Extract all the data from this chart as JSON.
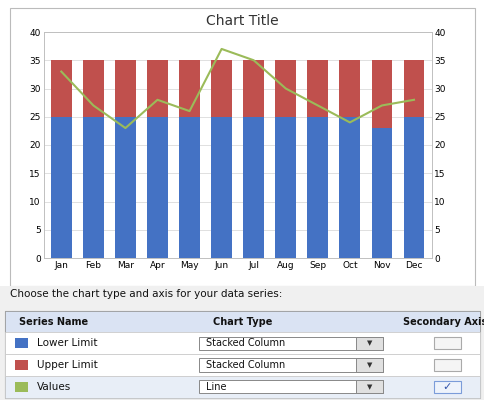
{
  "months": [
    "Jan",
    "Feb",
    "Mar",
    "Apr",
    "May",
    "Jun",
    "Jul",
    "Aug",
    "Sep",
    "Oct",
    "Nov",
    "Dec"
  ],
  "lower_limit": [
    25,
    25,
    25,
    25,
    25,
    25,
    25,
    25,
    25,
    25,
    23,
    25
  ],
  "upper_limit": [
    10,
    10,
    10,
    10,
    10,
    10,
    10,
    10,
    10,
    10,
    12,
    10
  ],
  "values": [
    33,
    27,
    23,
    28,
    26,
    37,
    35,
    30,
    27,
    24,
    27,
    28
  ],
  "lower_color": "#4472C4",
  "upper_color": "#C0504D",
  "values_color": "#9BBB59",
  "title": "Chart Title",
  "ylim": [
    0,
    40
  ],
  "yticks": [
    0,
    5,
    10,
    15,
    20,
    25,
    30,
    35,
    40
  ],
  "chart_bg": "#FFFFFF",
  "outer_bg": "#FFFFFF",
  "panel_bg": "#F0F0F0",
  "grid_color": "#D3D3D3",
  "border_color": "#C0C0C0",
  "table_header": "Choose the chart type and axis for your data series:",
  "col_headers": [
    "Series Name",
    "Chart Type",
    "Secondary Axis"
  ],
  "rows": [
    [
      "Lower Limit",
      "Stacked Column",
      false,
      "#4472C4"
    ],
    [
      "Upper Limit",
      "Stacked Column",
      false,
      "#C0504D"
    ],
    [
      "Values",
      "Line",
      true,
      "#9BBB59"
    ]
  ],
  "legend_labels": [
    "Lower Limit",
    "Upper Limit",
    "Values"
  ]
}
